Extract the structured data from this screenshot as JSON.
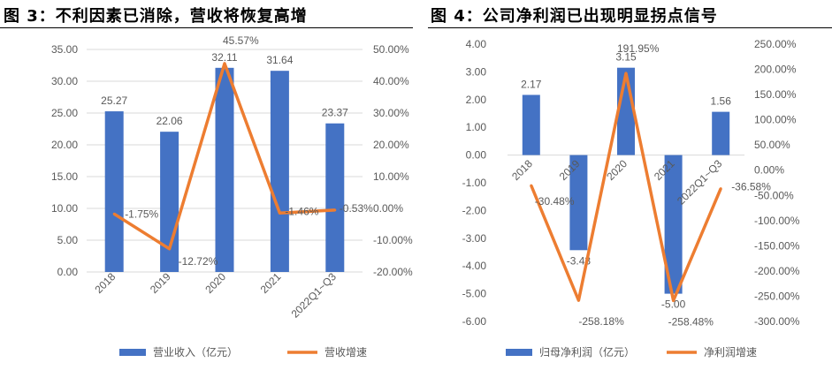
{
  "figures": [
    {
      "title": "图 3：不利因素已消除，营收将恢复高增",
      "legend": {
        "bar": "营业收入（亿元）",
        "line": "营收增速"
      }
    },
    {
      "title": "图 4：公司净利润已出现明显拐点信号",
      "legend": {
        "bar": "归母净利润（亿元）",
        "line": "净利润增速"
      }
    }
  ],
  "colors": {
    "bar": "#4472C4",
    "line": "#ED7D31",
    "grid": "#D9D9D9",
    "axis_text": "#595959",
    "title_rule": "#000000"
  },
  "chart_data": [
    {
      "type": "bar",
      "categories": [
        "2018",
        "2019",
        "2020",
        "2021",
        "2022Q1~Q3"
      ],
      "series": [
        {
          "name": "营业收入（亿元）",
          "axis": "left",
          "type": "bar",
          "values": [
            25.27,
            22.06,
            32.11,
            31.64,
            23.37
          ],
          "labels": [
            "25.27",
            "22.06",
            "32.11",
            "31.64",
            "23.37"
          ]
        },
        {
          "name": "营收增速",
          "axis": "right",
          "type": "line",
          "values": [
            -1.75,
            -12.72,
            45.57,
            -1.46,
            -0.53
          ],
          "labels": [
            "-1.75%",
            "-12.72%",
            "45.57%",
            "-1.46%",
            "-0.53%"
          ]
        }
      ],
      "y_left": {
        "min": 0,
        "max": 35,
        "step": 5,
        "ticks": [
          "0.00",
          "5.00",
          "10.00",
          "15.00",
          "20.00",
          "25.00",
          "30.00",
          "35.00"
        ]
      },
      "y_right": {
        "min": -20,
        "max": 50,
        "step": 10,
        "ticks": [
          "-20.00%",
          "-10.00%",
          "0.00%",
          "10.00%",
          "20.00%",
          "30.00%",
          "40.00%",
          "50.00%"
        ]
      },
      "grid": true,
      "legend_position": "bottom"
    },
    {
      "type": "bar",
      "categories": [
        "2018",
        "2019",
        "2020",
        "2021",
        "2022Q1~Q3"
      ],
      "series": [
        {
          "name": "归母净利润（亿元）",
          "axis": "left",
          "type": "bar",
          "values": [
            2.17,
            -3.43,
            3.15,
            -5.0,
            1.56
          ],
          "labels": [
            "2.17",
            "-3.43",
            "3.15",
            "-5.00",
            "1.56"
          ]
        },
        {
          "name": "净利润增速",
          "axis": "right",
          "type": "line",
          "values": [
            -30.48,
            -258.18,
            191.95,
            -258.48,
            -36.58
          ],
          "labels": [
            "-30.48%",
            "-258.18%",
            "191.95%",
            "-258.48%",
            "-36.58%"
          ]
        }
      ],
      "y_left": {
        "min": -6,
        "max": 4,
        "step": 1,
        "ticks": [
          "-6.00",
          "-5.00",
          "-4.00",
          "-3.00",
          "-2.00",
          "-1.00",
          "0.00",
          "1.00",
          "2.00",
          "3.00",
          "4.00"
        ]
      },
      "y_right": {
        "min": -300,
        "max": 250,
        "step": 50,
        "ticks": [
          "-300.00%",
          "-250.00%",
          "-200.00%",
          "-150.00%",
          "-100.00%",
          "-50.00%",
          "0.00%",
          "50.00%",
          "100.00%",
          "150.00%",
          "200.00%",
          "250.00%"
        ]
      },
      "grid": false,
      "legend_position": "bottom"
    }
  ]
}
